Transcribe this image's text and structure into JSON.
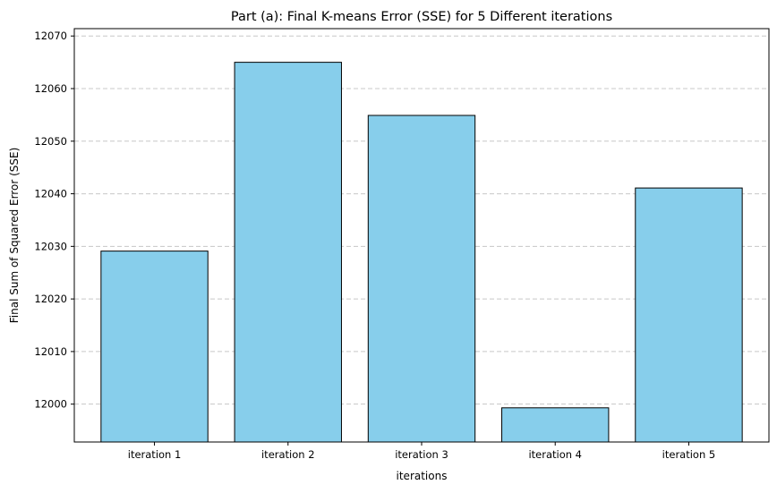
{
  "chart_data": {
    "type": "bar",
    "title": "Part (a): Final K-means Error (SSE) for 5 Different iterations",
    "xlabel": "iterations",
    "ylabel": "Final Sum of Squared Error (SSE)",
    "categories": [
      "iteration 1",
      "iteration 2",
      "iteration 3",
      "iteration 4",
      "iteration 5"
    ],
    "values": [
      12029.1,
      12065.0,
      12054.9,
      11999.3,
      12041.1
    ],
    "ylim": [
      11992.8,
      12071.4
    ],
    "yticks": [
      12000,
      12010,
      12020,
      12030,
      12040,
      12050,
      12060,
      12070
    ],
    "ytick_labels": [
      "12000",
      "12010",
      "12020",
      "12030",
      "12040",
      "12050",
      "12060",
      "12070"
    ],
    "grid": "y-dashed",
    "bar_color": "#87ceeb",
    "edge_color": "#000000",
    "grid_color": "#c8c8c8"
  }
}
